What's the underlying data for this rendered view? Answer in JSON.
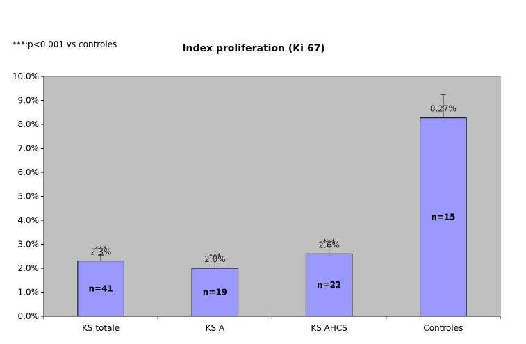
{
  "note": "***:p<0.001 vs controles",
  "chart_data": {
    "type": "bar",
    "title": "Index proliferation (Ki 67)",
    "xlabel": "",
    "ylabel": "",
    "categories": [
      "KS totale",
      "KS A",
      "KS AHCS",
      "Controles"
    ],
    "values": [
      2.3,
      2.0,
      2.6,
      8.27
    ],
    "value_labels": [
      "2.3%",
      "2.0%",
      "2.6%",
      "8.27%"
    ],
    "error_high": [
      2.55,
      2.4,
      2.9,
      9.25
    ],
    "n_labels": [
      "n=41",
      "n=19",
      "n=22",
      "n=15"
    ],
    "significance": [
      "***",
      "***",
      "***",
      ""
    ],
    "ylim": [
      0,
      10
    ],
    "y_ticks": [
      0,
      1,
      2,
      3,
      4,
      5,
      6,
      7,
      8,
      9,
      10
    ],
    "y_tick_labels": [
      "0.0%",
      "1.0%",
      "2.0%",
      "3.0%",
      "4.0%",
      "5.0%",
      "6.0%",
      "7.0%",
      "8.0%",
      "9.0%",
      "10.0%"
    ],
    "grid": false,
    "legend": "none",
    "colors": {
      "plot_bg": "#c0c0c0",
      "bar_fill": "#9999ff",
      "bar_stroke": "#000000"
    }
  }
}
